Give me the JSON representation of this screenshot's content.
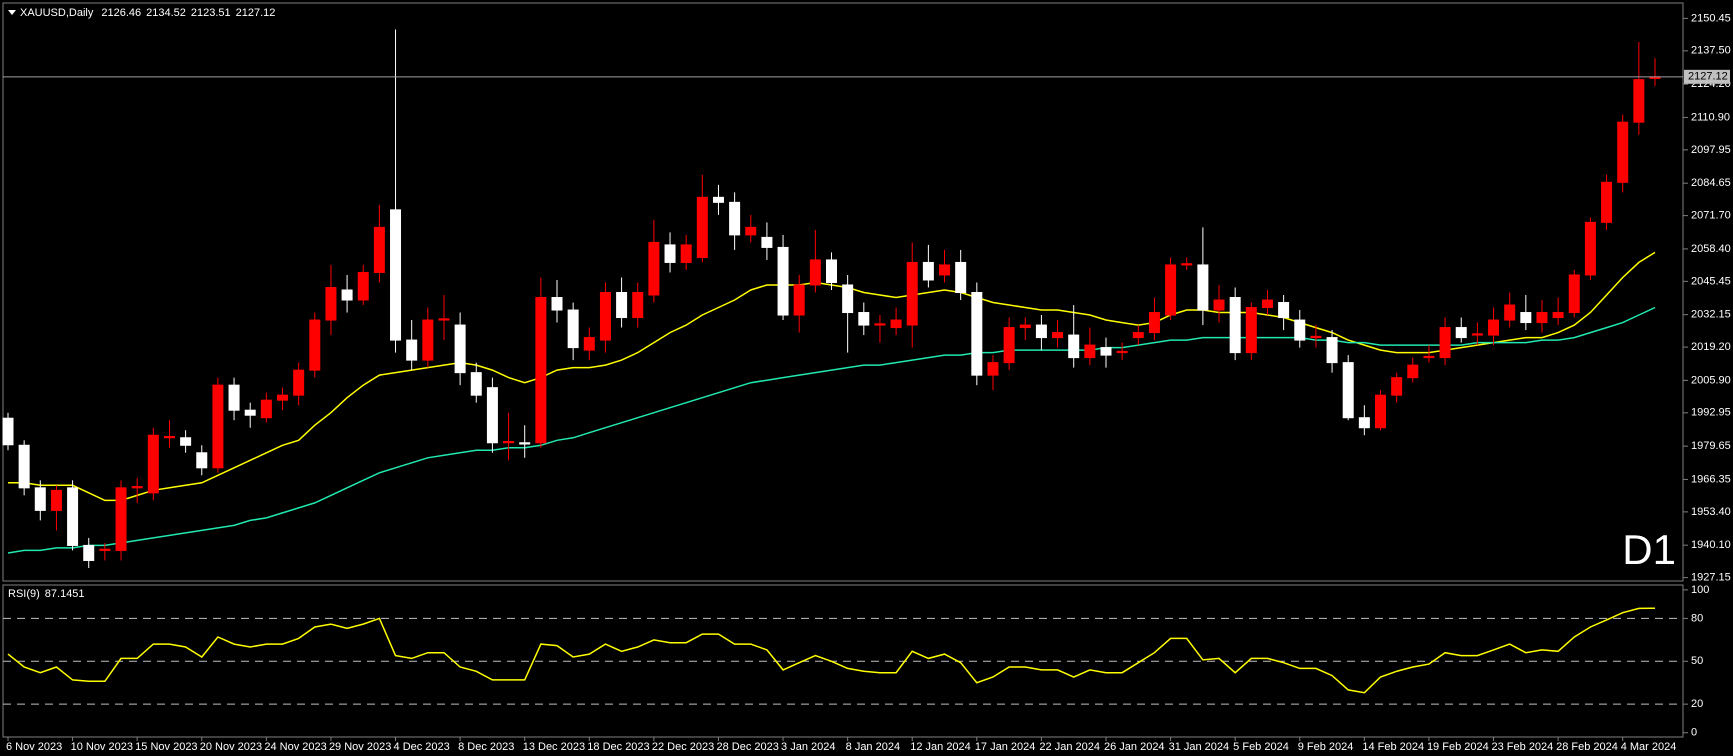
{
  "chart_data": [
    {
      "type": "candlestick",
      "title": "XAUUSD,Daily",
      "annotation": "D1",
      "annotation_color": "#ff0000",
      "up_color": "#ff0000",
      "down_color": "#ffffff",
      "last_price_line": true,
      "categories": [
        "6 Nov 2023",
        null,
        null,
        null,
        "10 Nov 2023",
        null,
        null,
        null,
        "15 Nov 2023",
        null,
        null,
        null,
        "20 Nov 2023",
        null,
        null,
        null,
        "24 Nov 2023",
        null,
        null,
        null,
        "29 Nov 2023",
        null,
        null,
        null,
        "4 Dec 2023",
        null,
        null,
        null,
        "8 Dec 2023",
        null,
        null,
        null,
        "13 Dec 2023",
        null,
        null,
        null,
        "18 Dec 2023",
        null,
        null,
        null,
        "22 Dec 2023",
        null,
        null,
        null,
        "28 Dec 2023",
        null,
        null,
        null,
        "3 Jan 2024",
        null,
        null,
        null,
        "8 Jan 2024",
        null,
        null,
        null,
        "12 Jan 2024",
        null,
        null,
        null,
        "17 Jan 2024",
        null,
        null,
        null,
        "22 Jan 2024",
        null,
        null,
        null,
        "26 Jan 2024",
        null,
        null,
        null,
        "31 Jan 2024",
        null,
        null,
        null,
        "5 Feb 2024",
        null,
        null,
        null,
        "9 Feb 2024",
        null,
        null,
        null,
        "14 Feb 2024",
        null,
        null,
        null,
        "19 Feb 2024",
        null,
        null,
        null,
        "23 Feb 2024",
        null,
        null,
        null,
        "28 Feb 2024",
        null,
        null,
        null,
        "4 Mar 2024",
        null,
        null
      ],
      "open": [
        1990.8,
        1980,
        1963,
        1954,
        1963,
        1940,
        1938,
        1938,
        1963,
        1961,
        1983,
        1983,
        1977,
        1971,
        2004,
        1994,
        1991,
        1998,
        2000,
        2010,
        2030,
        2042,
        2038,
        2049,
        2074,
        2022,
        2014,
        2030,
        2028,
        2009,
        2003,
        1981,
        1981,
        1981,
        2039,
        2034,
        2018,
        2022,
        2041,
        2031,
        2040,
        2060,
        2053,
        2055,
        2079,
        2077,
        2064,
        2063,
        2059,
        2032,
        2044,
        2054,
        2044,
        2033,
        2028,
        2027,
        2028,
        2053,
        2048,
        2053,
        2041,
        2008,
        2013,
        2027,
        2028,
        2023,
        2024,
        2015,
        2019,
        2017,
        2023,
        2025,
        2032,
        2052,
        2052,
        2034,
        2039,
        2017,
        2035,
        2037,
        2030,
        2023,
        2023,
        2013,
        1991,
        1987,
        2000,
        2007,
        2015,
        2015,
        2027,
        2024,
        2024,
        2030,
        2033,
        2029,
        2031,
        2033,
        2048,
        2069,
        2085,
        2109,
        2126.46
      ],
      "high": [
        1993,
        1982,
        1966,
        1964,
        1966,
        1943,
        1941,
        1966,
        1967,
        1987,
        1990,
        1986,
        1980,
        2007,
        2007,
        1997,
        2001,
        2003,
        2013,
        2033,
        2052,
        2048,
        2052,
        2076,
        2146,
        2030,
        2035,
        2040,
        2033,
        2013,
        2007,
        1993,
        1988,
        2047,
        2046,
        2037,
        2027,
        2045,
        2047,
        2045,
        2070,
        2065,
        2064,
        2088,
        2084,
        2081,
        2072,
        2069,
        2064,
        2048,
        2066,
        2057,
        2048,
        2037,
        2032,
        2035,
        2061,
        2060,
        2058,
        2058,
        2045,
        2016,
        2031,
        2031,
        2032,
        2030,
        2036,
        2027,
        2023,
        2021,
        2028,
        2039,
        2055,
        2055,
        2067,
        2044,
        2043,
        2037,
        2042,
        2040,
        2034,
        2028,
        2026,
        2016,
        1996,
        2002,
        2009,
        2015,
        2020,
        2031,
        2031,
        2029,
        2035,
        2041,
        2040,
        2038,
        2039,
        2050,
        2071,
        2088,
        2112,
        2141,
        2134.52
      ],
      "low": [
        1978,
        1960,
        1950,
        1946,
        1938,
        1931,
        1934,
        1934,
        1957,
        1958,
        1979,
        1977,
        1968,
        1969,
        1990,
        1987,
        1989,
        1994,
        1996,
        2007,
        2024,
        2033,
        2036,
        2045,
        2017,
        2010,
        2011,
        2022,
        2004,
        1997,
        1977,
        1974,
        1975,
        1979,
        2029,
        2014,
        2014,
        2017,
        2027,
        2027,
        2037,
        2049,
        2050,
        2053,
        2072,
        2058,
        2061,
        2054,
        2030,
        2025,
        2041,
        2042,
        2017,
        2024,
        2021,
        2024,
        2019,
        2043,
        2045,
        2038,
        2004,
        2002,
        2010,
        2022,
        2018,
        2019,
        2011,
        2012,
        2011,
        2014,
        2020,
        2022,
        2030,
        2050,
        2028,
        2029,
        2014,
        2014,
        2032,
        2026,
        2019,
        2019,
        2009,
        1990,
        1984,
        1986,
        1997,
        2005,
        2013,
        2012,
        2021,
        2020,
        2020,
        2027,
        2026,
        2025,
        2028,
        2031,
        2046,
        2066,
        2081,
        2104,
        2123.51
      ],
      "close": [
        1980.2,
        1963,
        1954,
        1962,
        1940,
        1934,
        1938.5,
        1963,
        1963.5,
        1984,
        1983.5,
        1980,
        1971,
        2004,
        1994,
        1992,
        1998,
        2000,
        2010,
        2030,
        2043,
        2038,
        2049,
        2067,
        2022,
        2014,
        2030,
        2030.5,
        2009,
        2000,
        1981,
        1981.5,
        1980.5,
        2039,
        2034,
        2019,
        2023,
        2041,
        2031,
        2041,
        2061,
        2053,
        2060,
        2079,
        2077,
        2064,
        2067,
        2059,
        2032,
        2044,
        2054,
        2045,
        2033,
        2028,
        2028.5,
        2030,
        2053,
        2046,
        2052,
        2041,
        2008,
        2013,
        2027,
        2028,
        2023,
        2025,
        2015,
        2020,
        2016,
        2017.5,
        2025,
        2033,
        2052,
        2052.5,
        2034,
        2038,
        2017,
        2035,
        2038,
        2031,
        2022,
        2023.5,
        2013,
        1991,
        1987,
        2000,
        2007,
        2012,
        2015.5,
        2027,
        2023,
        2024.5,
        2030,
        2036,
        2029,
        2033,
        2033,
        2048,
        2069,
        2085,
        2109,
        2126,
        2127.12
      ],
      "overlays": [
        {
          "color": "#ffff00",
          "values": [
            1965,
            1965,
            1964,
            1964,
            1964,
            1961,
            1958,
            1958,
            1960,
            1962,
            1963,
            1964,
            1965,
            1968,
            1971,
            1974,
            1977,
            1980,
            1982,
            1988,
            1993,
            1999,
            2004,
            2008,
            2009,
            2010,
            2011,
            2012,
            2013,
            2012,
            2010,
            2007,
            2005,
            2007,
            2010,
            2011,
            2011,
            2012,
            2014,
            2017,
            2021,
            2025,
            2028,
            2032,
            2035,
            2038,
            2042,
            2044,
            2044,
            2044,
            2045,
            2044,
            2043,
            2041,
            2040,
            2039,
            2040,
            2041,
            2042,
            2041,
            2039,
            2037,
            2036,
            2035,
            2034,
            2034,
            2033,
            2032,
            2030,
            2029,
            2028,
            2029,
            2032,
            2034,
            2034,
            2033,
            2033,
            2033,
            2032,
            2031,
            2029,
            2027,
            2025,
            2022,
            2020,
            2018,
            2017,
            2017,
            2017,
            2018,
            2019,
            2020,
            2021,
            2022,
            2023,
            2023,
            2025,
            2028,
            2033,
            2040,
            2047,
            2053,
            2057
          ]
        },
        {
          "color": "#20e8b0",
          "values": [
            1937,
            1938,
            1938,
            1939,
            1939,
            1940,
            1940,
            1941,
            1942,
            1943,
            1944,
            1945,
            1946,
            1947,
            1948,
            1950,
            1951,
            1953,
            1955,
            1957,
            1960,
            1963,
            1966,
            1969,
            1971,
            1973,
            1975,
            1976,
            1977,
            1978,
            1978,
            1979,
            1979,
            1980,
            1982,
            1983,
            1985,
            1987,
            1989,
            1991,
            1993,
            1995,
            1997,
            1999,
            2001,
            2003,
            2005,
            2006,
            2007,
            2008,
            2009,
            2010,
            2011,
            2012,
            2012,
            2013,
            2014,
            2015,
            2016,
            2016,
            2017,
            2017,
            2018,
            2018,
            2018,
            2018,
            2018,
            2018,
            2019,
            2019,
            2020,
            2021,
            2022,
            2022,
            2023,
            2023,
            2023,
            2023,
            2023,
            2023,
            2023,
            2022,
            2022,
            2021,
            2021,
            2020,
            2020,
            2020,
            2020,
            2020,
            2020,
            2021,
            2021,
            2021,
            2021,
            2022,
            2022,
            2023,
            2025,
            2027,
            2029,
            2032,
            2035
          ]
        }
      ],
      "ylim": [
        1925.8,
        2155.8
      ],
      "yticks": [
        {
          "value": 2150.45,
          "label": "2150.45"
        },
        {
          "value": 2137.5,
          "label": "2137.50"
        },
        {
          "value": 2124.2,
          "label": "2124.20"
        },
        {
          "value": 2110.9,
          "label": "2110.90"
        },
        {
          "value": 2097.95,
          "label": "2097.95"
        },
        {
          "value": 2084.65,
          "label": "2084.65"
        },
        {
          "value": 2071.7,
          "label": "2071.70"
        },
        {
          "value": 2058.4,
          "label": "2058.40"
        },
        {
          "value": 2045.45,
          "label": "2045.45"
        },
        {
          "value": 2032.15,
          "label": "2032.15"
        },
        {
          "value": 2019.2,
          "label": "2019.20"
        },
        {
          "value": 2005.9,
          "label": "2005.90"
        },
        {
          "value": 1992.95,
          "label": "1992.95"
        },
        {
          "value": 1979.65,
          "label": "1979.65"
        },
        {
          "value": 1966.35,
          "label": "1966.35"
        },
        {
          "value": 1953.4,
          "label": "1953.40"
        },
        {
          "value": 1940.1,
          "label": "1940.10"
        },
        {
          "value": 1927.15,
          "label": "1927.15"
        }
      ]
    },
    {
      "type": "line",
      "title": "RSI(9)",
      "series": [
        {
          "color": "#ffff00",
          "values": [
            55,
            46,
            42,
            46,
            37,
            36,
            36,
            52,
            52,
            62,
            62,
            60,
            53,
            67,
            62,
            60,
            62,
            62,
            66,
            74,
            76,
            73,
            76,
            80,
            54,
            52,
            56,
            56,
            46,
            43,
            37,
            37,
            37,
            62,
            61,
            53,
            55,
            62,
            57,
            60,
            65,
            63,
            63,
            69,
            69,
            62,
            62,
            58,
            44,
            49,
            54,
            50,
            45,
            43,
            42,
            42,
            57,
            52,
            55,
            49,
            35,
            39,
            46,
            46,
            44,
            44,
            39,
            44,
            42,
            42,
            49,
            56,
            66,
            66,
            51,
            52,
            42,
            52,
            52,
            49,
            45,
            45,
            40,
            30,
            28,
            39,
            43,
            46,
            48,
            56,
            54,
            54,
            58,
            62,
            56,
            58,
            57,
            67,
            74,
            79,
            84,
            87,
            87.1451
          ]
        }
      ],
      "ylim": [
        -3,
        102
      ],
      "yticks": [
        100,
        80,
        50,
        20,
        0
      ],
      "levels": [
        80,
        50,
        20
      ]
    }
  ]
}
